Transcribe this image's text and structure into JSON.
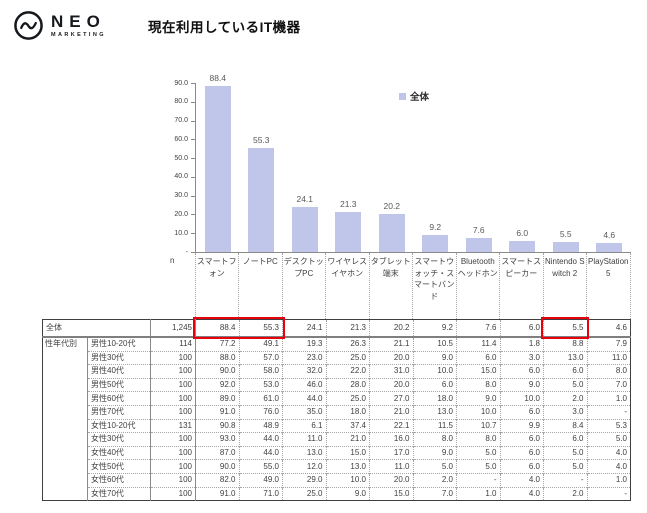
{
  "brand": {
    "name": "NEO",
    "sub": "MARKETING",
    "icon": "wave-circle-icon"
  },
  "title": "現在利用しているIT機器",
  "chart_data": {
    "type": "bar",
    "title": "現在利用しているIT機器",
    "categories": [
      "スマートフォン",
      "ノートPC",
      "デスクトップPC",
      "ワイヤレスイヤホン",
      "タブレット端末",
      "スマートウォッチ・スマートバンド",
      "Bluetoothヘッドホン",
      "スマートスピーカー",
      "Nintendo Switch 2",
      "PlayStation 5"
    ],
    "values": [
      88.4,
      55.3,
      24.1,
      21.3,
      20.2,
      9.2,
      7.6,
      6.0,
      5.5,
      4.6
    ],
    "value_labels": [
      "88.4",
      "55.3",
      "24.1",
      "21.3",
      "20.2",
      "9.2",
      "7.6",
      "6.0",
      "5.5",
      "4.6"
    ],
    "ylim": [
      0,
      90
    ],
    "yticks": [
      {
        "label": "90.0",
        "value": 90
      },
      {
        "label": "80.0",
        "value": 80
      },
      {
        "label": "70.0",
        "value": 70
      },
      {
        "label": "60.0",
        "value": 60
      },
      {
        "label": "50.0",
        "value": 50
      },
      {
        "label": "40.0",
        "value": 40
      },
      {
        "label": "30.0",
        "value": 30
      },
      {
        "label": "20.0",
        "value": 20
      },
      {
        "label": "10.0",
        "value": 10
      },
      {
        "label": "-",
        "value": 0
      }
    ],
    "grid": false,
    "bar_color": "#bfc6e9",
    "legend": [
      {
        "label": "全体",
        "color": "#bfc6e9"
      }
    ],
    "legend_position": "top-right"
  },
  "table": {
    "n_header": "n",
    "group_header": "性年代別",
    "columns": [
      "スマートフォン",
      "ノートPC",
      "デスクトップPC",
      "ワイヤレスイヤホン",
      "タブレット端末",
      "スマートウォッチ・スマートバンド",
      "Bluetoothヘッドホン",
      "スマートスピーカー",
      "Nintendo Switch 2",
      "PlayStation 5"
    ],
    "rows": [
      {
        "label": "全体",
        "n": "1,245",
        "is_total": true,
        "values": [
          "88.4",
          "55.3",
          "24.1",
          "21.3",
          "20.2",
          "9.2",
          "7.6",
          "6.0",
          "5.5",
          "4.6"
        ]
      },
      {
        "label": "男性10-20代",
        "n": "114",
        "values": [
          "77.2",
          "49.1",
          "19.3",
          "26.3",
          "21.1",
          "10.5",
          "11.4",
          "1.8",
          "8.8",
          "7.9"
        ]
      },
      {
        "label": "男性30代",
        "n": "100",
        "values": [
          "88.0",
          "57.0",
          "23.0",
          "25.0",
          "20.0",
          "9.0",
          "6.0",
          "3.0",
          "13.0",
          "11.0"
        ]
      },
      {
        "label": "男性40代",
        "n": "100",
        "values": [
          "90.0",
          "58.0",
          "32.0",
          "22.0",
          "31.0",
          "10.0",
          "15.0",
          "6.0",
          "6.0",
          "8.0"
        ]
      },
      {
        "label": "男性50代",
        "n": "100",
        "values": [
          "92.0",
          "53.0",
          "46.0",
          "28.0",
          "20.0",
          "6.0",
          "8.0",
          "9.0",
          "5.0",
          "7.0"
        ]
      },
      {
        "label": "男性60代",
        "n": "100",
        "values": [
          "89.0",
          "61.0",
          "44.0",
          "25.0",
          "27.0",
          "18.0",
          "9.0",
          "10.0",
          "2.0",
          "1.0"
        ]
      },
      {
        "label": "男性70代",
        "n": "100",
        "values": [
          "91.0",
          "76.0",
          "35.0",
          "18.0",
          "21.0",
          "13.0",
          "10.0",
          "6.0",
          "3.0",
          "-"
        ]
      },
      {
        "label": "女性10-20代",
        "n": "131",
        "values": [
          "90.8",
          "48.9",
          "6.1",
          "37.4",
          "22.1",
          "11.5",
          "10.7",
          "9.9",
          "8.4",
          "5.3"
        ]
      },
      {
        "label": "女性30代",
        "n": "100",
        "values": [
          "93.0",
          "44.0",
          "11.0",
          "21.0",
          "16.0",
          "8.0",
          "8.0",
          "6.0",
          "6.0",
          "5.0"
        ]
      },
      {
        "label": "女性40代",
        "n": "100",
        "values": [
          "87.0",
          "44.0",
          "13.0",
          "15.0",
          "17.0",
          "9.0",
          "5.0",
          "6.0",
          "5.0",
          "4.0"
        ]
      },
      {
        "label": "女性50代",
        "n": "100",
        "values": [
          "90.0",
          "55.0",
          "12.0",
          "13.0",
          "11.0",
          "5.0",
          "5.0",
          "6.0",
          "5.0",
          "4.0"
        ]
      },
      {
        "label": "女性60代",
        "n": "100",
        "values": [
          "82.0",
          "49.0",
          "29.0",
          "10.0",
          "20.0",
          "2.0",
          "-",
          "4.0",
          "-",
          "1.0"
        ]
      },
      {
        "label": "女性70代",
        "n": "100",
        "values": [
          "91.0",
          "71.0",
          "25.0",
          "9.0",
          "15.0",
          "7.0",
          "1.0",
          "4.0",
          "2.0",
          "-"
        ]
      }
    ],
    "highlights": [
      {
        "row_index": 0,
        "col_start": 0,
        "col_end": 1
      },
      {
        "row_index": 0,
        "col_start": 8,
        "col_end": 8
      }
    ]
  },
  "colors": {
    "bar": "#bfc6e9",
    "highlight": "#e8000d",
    "axis": "#8a8a8a",
    "text": "#404040"
  }
}
